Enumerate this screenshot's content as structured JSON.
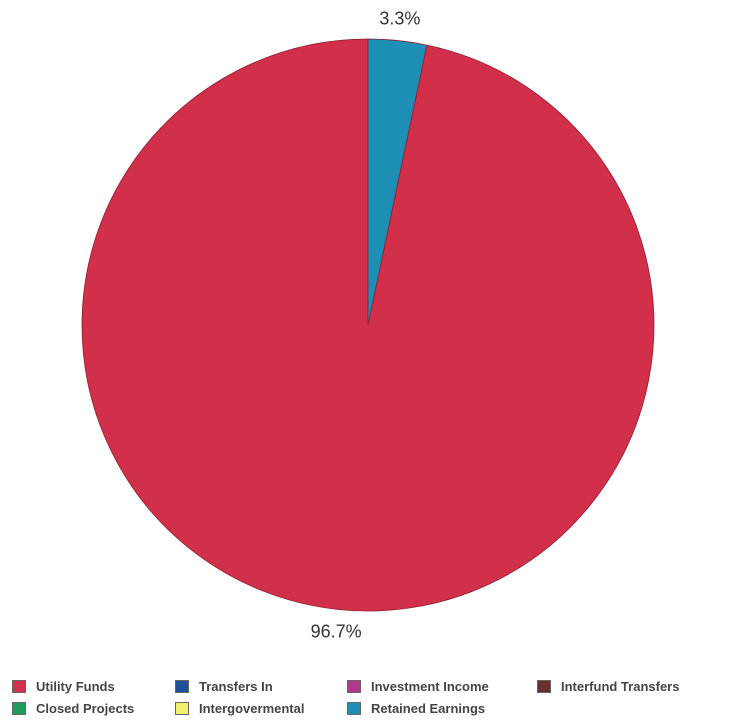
{
  "chart_data": {
    "type": "pie",
    "categories": [
      "Utility Funds",
      "Closed Projects",
      "Transfers In",
      "Intergovermental",
      "Investment Income",
      "Retained Earnings",
      "Interfund Transfers"
    ],
    "values": [
      96.7,
      0,
      0,
      0,
      0,
      3.3,
      0
    ],
    "colors": [
      "#d2304a",
      "#1f9a5a",
      "#1f4f9a",
      "#f2f26a",
      "#b03a8a",
      "#1e8fb4",
      "#6a3030"
    ],
    "slice_labels": [
      {
        "category": "Utility Funds",
        "text": "96.7%"
      },
      {
        "category": "Retained Earnings",
        "text": "3.3%"
      }
    ],
    "legend_placement": "bottom",
    "title": "",
    "start_angle_degrees": 0,
    "direction": "counterclockwise"
  },
  "legend": [
    {
      "label": "Utility Funds",
      "color": "#d2304a"
    },
    {
      "label": "Transfers In",
      "color": "#1f4f9a"
    },
    {
      "label": "Investment Income",
      "color": "#b03a8a"
    },
    {
      "label": "Interfund Transfers",
      "color": "#6a3030"
    },
    {
      "label": "Closed Projects",
      "color": "#1f9a5a"
    },
    {
      "label": "Intergovermental",
      "color": "#f2f26a"
    },
    {
      "label": "Retained Earnings",
      "color": "#1e8fb4"
    }
  ]
}
